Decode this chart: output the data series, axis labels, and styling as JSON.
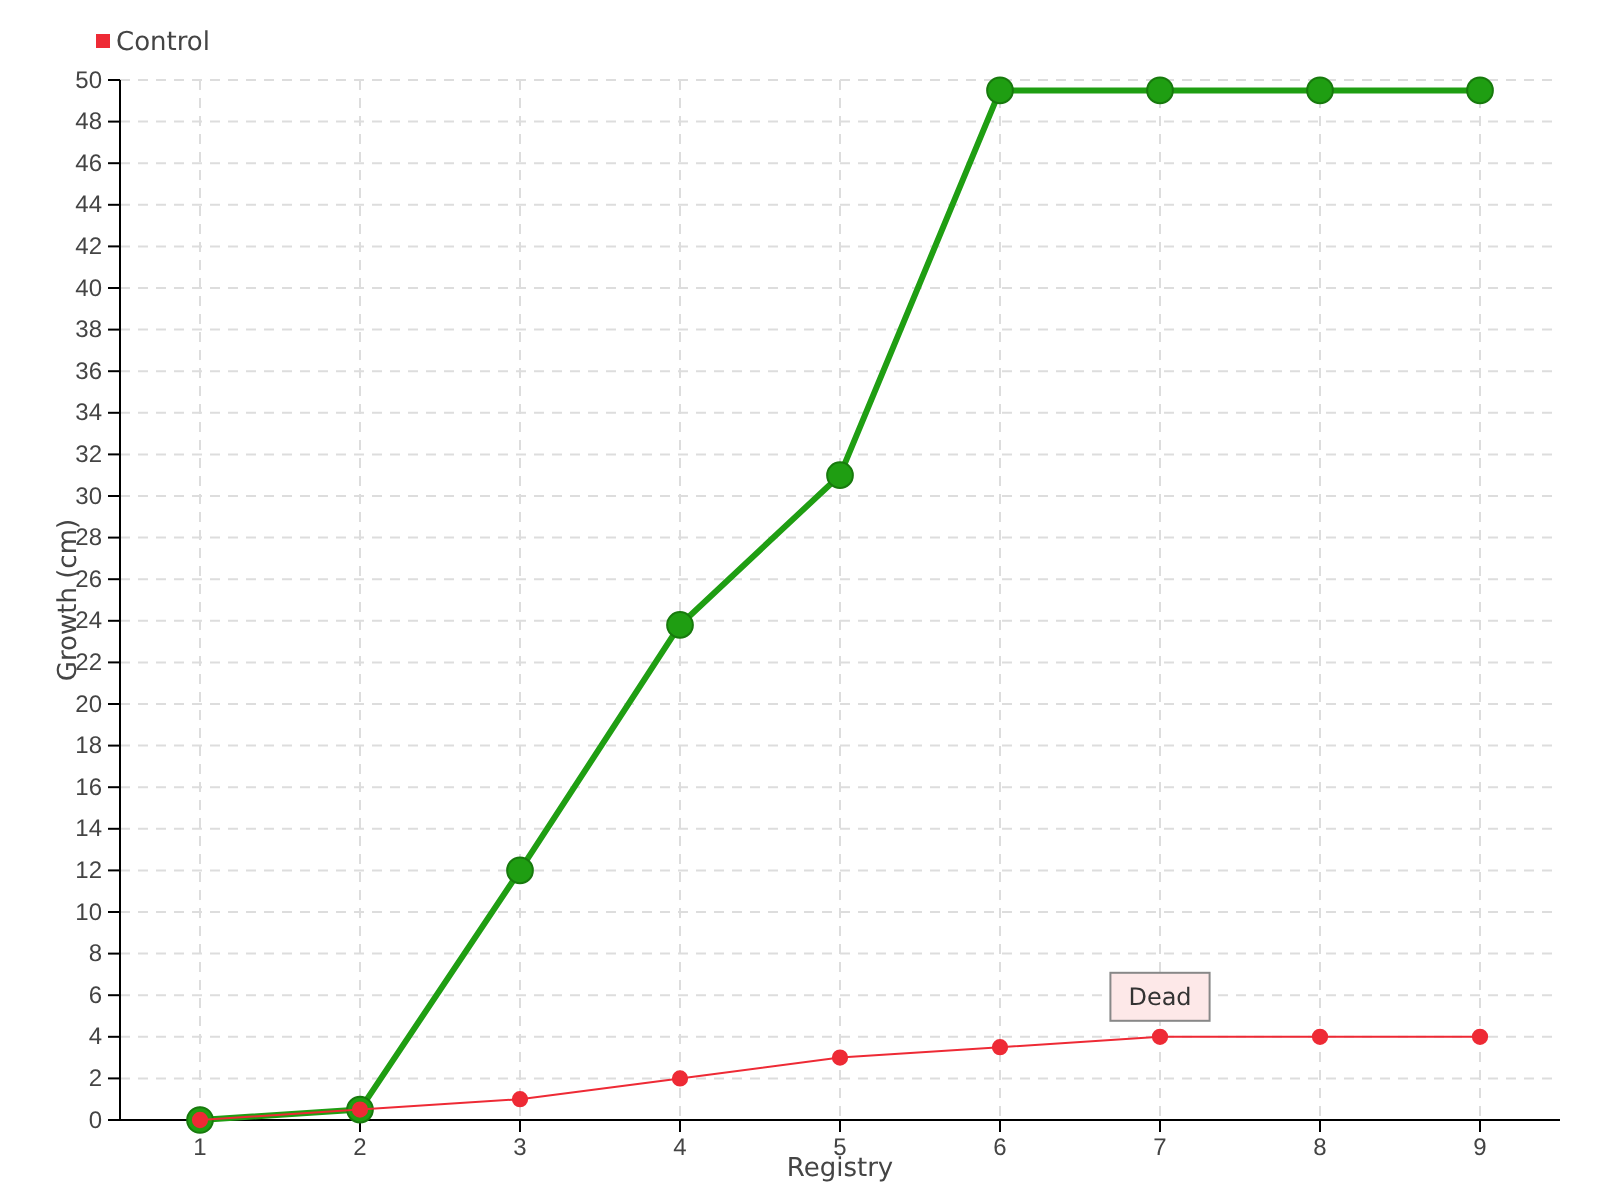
{
  "chart_data": {
    "type": "line",
    "xlabel": "Registry",
    "ylabel": "Growth (cm)",
    "x": [
      1,
      2,
      3,
      4,
      5,
      6,
      7,
      8,
      9
    ],
    "series": [
      {
        "color": "#1f9e12",
        "values": [
          0,
          0.5,
          12,
          23.8,
          31,
          49.5,
          49.5,
          49.5,
          49.5
        ]
      },
      {
        "name": "Control",
        "color": "#ee2a35",
        "values": [
          0,
          0.5,
          1,
          2,
          3,
          3.5,
          4,
          4,
          4
        ]
      }
    ],
    "xlim": [
      0.5,
      9.5
    ],
    "xticks": [
      1,
      2,
      3,
      4,
      5,
      6,
      7,
      8,
      9
    ],
    "ylim": [
      0,
      50
    ],
    "yticks": [
      0,
      2,
      4,
      6,
      8,
      10,
      12,
      14,
      16,
      18,
      20,
      22,
      24,
      26,
      28,
      30,
      32,
      34,
      36,
      38,
      40,
      42,
      44,
      46,
      48,
      50
    ],
    "grid": true,
    "legend": "top left",
    "marker": "circle",
    "line_style": "solid",
    "annotations": [
      {
        "text": "Dead",
        "x": 7,
        "y": 4
      }
    ]
  }
}
